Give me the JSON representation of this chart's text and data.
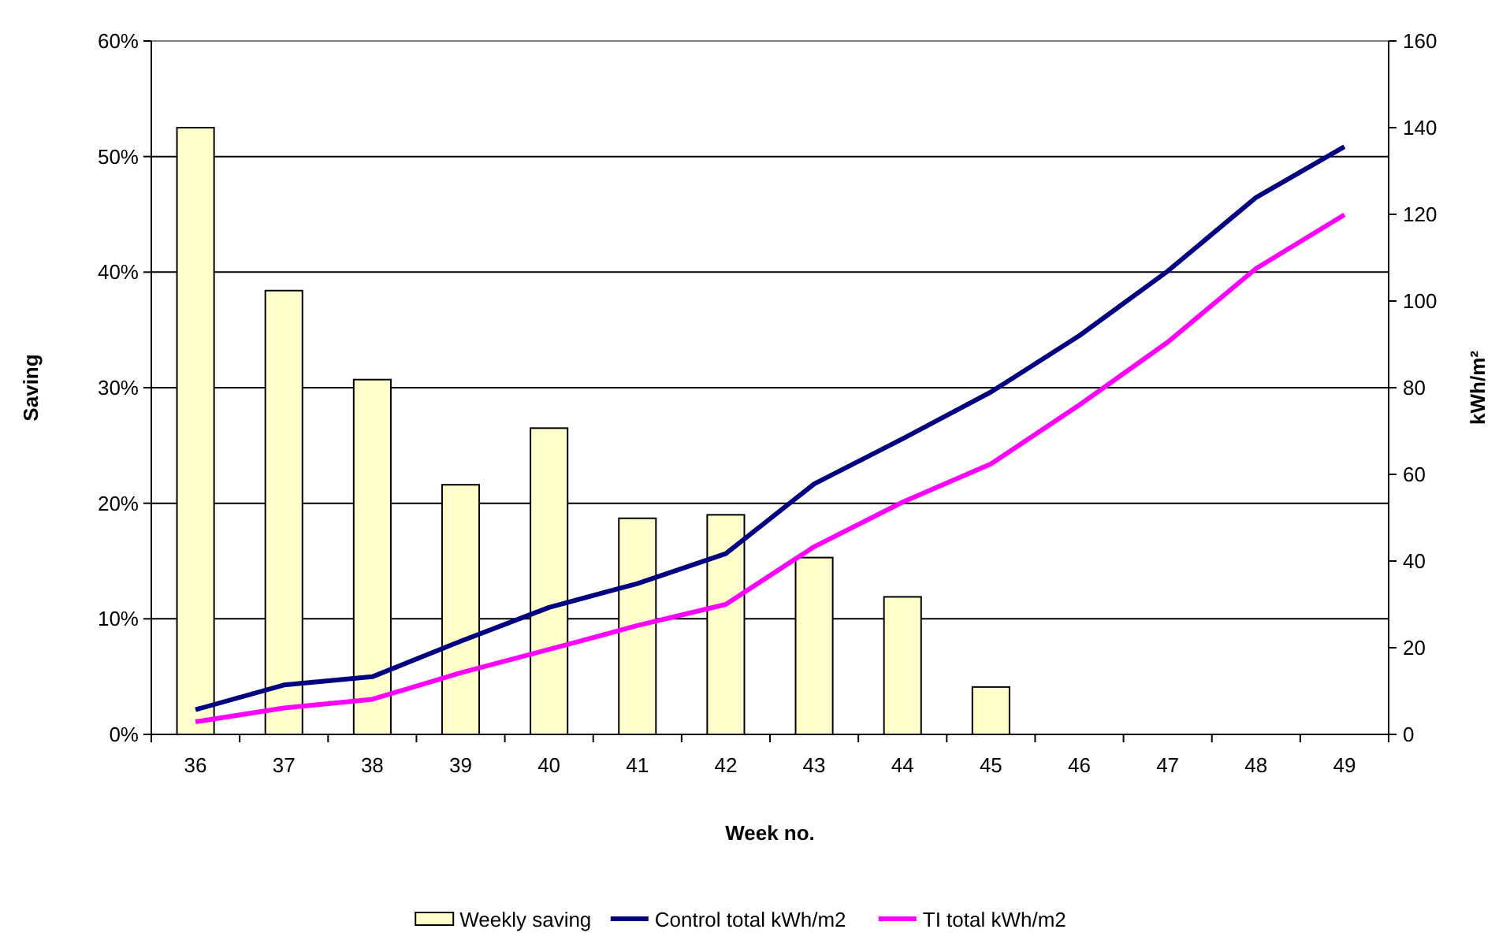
{
  "chart_data": {
    "type": "bar",
    "xlabel": "Week no.",
    "ylabel": "Saving",
    "y2label": "kWh/m²",
    "categories": [
      "36",
      "37",
      "38",
      "39",
      "40",
      "41",
      "42",
      "43",
      "44",
      "45",
      "46",
      "47",
      "48",
      "49"
    ],
    "series": [
      {
        "name": "Weekly saving",
        "color": "#ffffcc",
        "values": [
          52.5,
          38.4,
          30.7,
          21.6,
          26.5,
          18.7,
          19.0,
          15.3,
          11.9,
          4.1,
          null,
          null,
          null,
          null
        ]
      },
      {
        "name": "Control total kWh/m2",
        "type": "line",
        "axis": "y2",
        "color": "#000080",
        "values": [
          5.7,
          11.4,
          13.3,
          21.5,
          29.3,
          34.8,
          41.7,
          57.8,
          68.2,
          79.0,
          92.0,
          106.9,
          123.9,
          135.6
        ]
      },
      {
        "name": "TI total kWh/m2",
        "type": "line",
        "axis": "y2",
        "color": "#ff00ff",
        "values": [
          2.9,
          6.1,
          8.1,
          14.2,
          19.6,
          25.1,
          30.0,
          43.3,
          53.6,
          62.4,
          76.0,
          90.5,
          107.5,
          119.9
        ]
      }
    ],
    "ylim": [
      0,
      60
    ],
    "yticks": [
      {
        "value": 0,
        "label": "0%"
      },
      {
        "value": 10,
        "label": "10%"
      },
      {
        "value": 20,
        "label": "20%"
      },
      {
        "value": 30,
        "label": "30%"
      },
      {
        "value": 40,
        "label": "40%"
      },
      {
        "value": 50,
        "label": "50%"
      },
      {
        "value": 60,
        "label": "60%"
      }
    ],
    "y2lim": [
      0,
      160
    ],
    "y2ticks": [
      0,
      20,
      40,
      60,
      80,
      100,
      120,
      140,
      160
    ],
    "grid": "y",
    "legend": "bottom",
    "marker": "none",
    "line_style": "solid"
  }
}
